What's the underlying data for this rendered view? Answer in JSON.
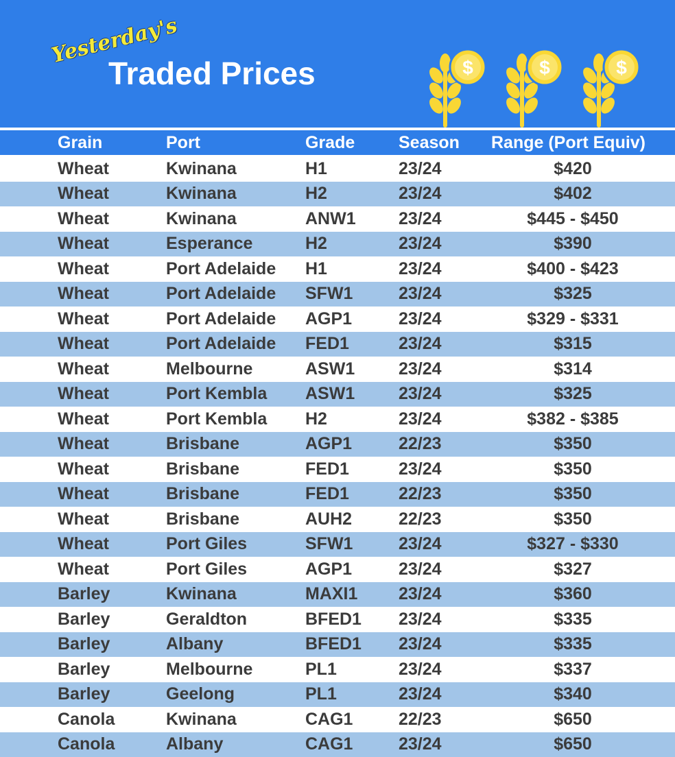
{
  "banner": {
    "title_script": "Yesterday's",
    "title_main": "Traded Prices",
    "icons": [
      "wheat-coin-icon",
      "wheat-coin-icon",
      "wheat-coin-icon"
    ],
    "colors": {
      "background": "#2f7ee8",
      "accent_yellow": "#f9d735",
      "row_alt": "#a2c5e8"
    }
  },
  "table": {
    "headers": [
      "Grain",
      "Port",
      "Grade",
      "Season",
      "Range (Port Equiv)"
    ],
    "rows": [
      [
        "Wheat",
        "Kwinana",
        "H1",
        "23/24",
        "$420"
      ],
      [
        "Wheat",
        "Kwinana",
        "H2",
        "23/24",
        "$402"
      ],
      [
        "Wheat",
        "Kwinana",
        "ANW1",
        "23/24",
        "$445 - $450"
      ],
      [
        "Wheat",
        "Esperance",
        "H2",
        "23/24",
        "$390"
      ],
      [
        "Wheat",
        "Port Adelaide",
        "H1",
        "23/24",
        "$400 - $423"
      ],
      [
        "Wheat",
        "Port Adelaide",
        "SFW1",
        "23/24",
        "$325"
      ],
      [
        "Wheat",
        "Port Adelaide",
        "AGP1",
        "23/24",
        "$329 - $331"
      ],
      [
        "Wheat",
        "Port Adelaide",
        "FED1",
        "23/24",
        "$315"
      ],
      [
        "Wheat",
        "Melbourne",
        "ASW1",
        "23/24",
        "$314"
      ],
      [
        "Wheat",
        "Port Kembla",
        "ASW1",
        "23/24",
        "$325"
      ],
      [
        "Wheat",
        "Port Kembla",
        "H2",
        "23/24",
        "$382 - $385"
      ],
      [
        "Wheat",
        "Brisbane",
        "AGP1",
        "22/23",
        "$350"
      ],
      [
        "Wheat",
        "Brisbane",
        "FED1",
        "23/24",
        "$350"
      ],
      [
        "Wheat",
        "Brisbane",
        "FED1",
        "22/23",
        "$350"
      ],
      [
        "Wheat",
        "Brisbane",
        "AUH2",
        "22/23",
        "$350"
      ],
      [
        "Wheat",
        "Port Giles",
        "SFW1",
        "23/24",
        "$327 - $330"
      ],
      [
        "Wheat",
        "Port Giles",
        "AGP1",
        "23/24",
        "$327"
      ],
      [
        "Barley",
        "Kwinana",
        "MAXI1",
        "23/24",
        "$360"
      ],
      [
        "Barley",
        "Geraldton",
        "BFED1",
        "23/24",
        "$335"
      ],
      [
        "Barley",
        "Albany",
        "BFED1",
        "23/24",
        "$335"
      ],
      [
        "Barley",
        "Melbourne",
        "PL1",
        "23/24",
        "$337"
      ],
      [
        "Barley",
        "Geelong",
        "PL1",
        "23/24",
        "$340"
      ],
      [
        "Canola",
        "Kwinana",
        "CAG1",
        "22/23",
        "$650"
      ],
      [
        "Canola",
        "Albany",
        "CAG1",
        "23/24",
        "$650"
      ]
    ]
  }
}
